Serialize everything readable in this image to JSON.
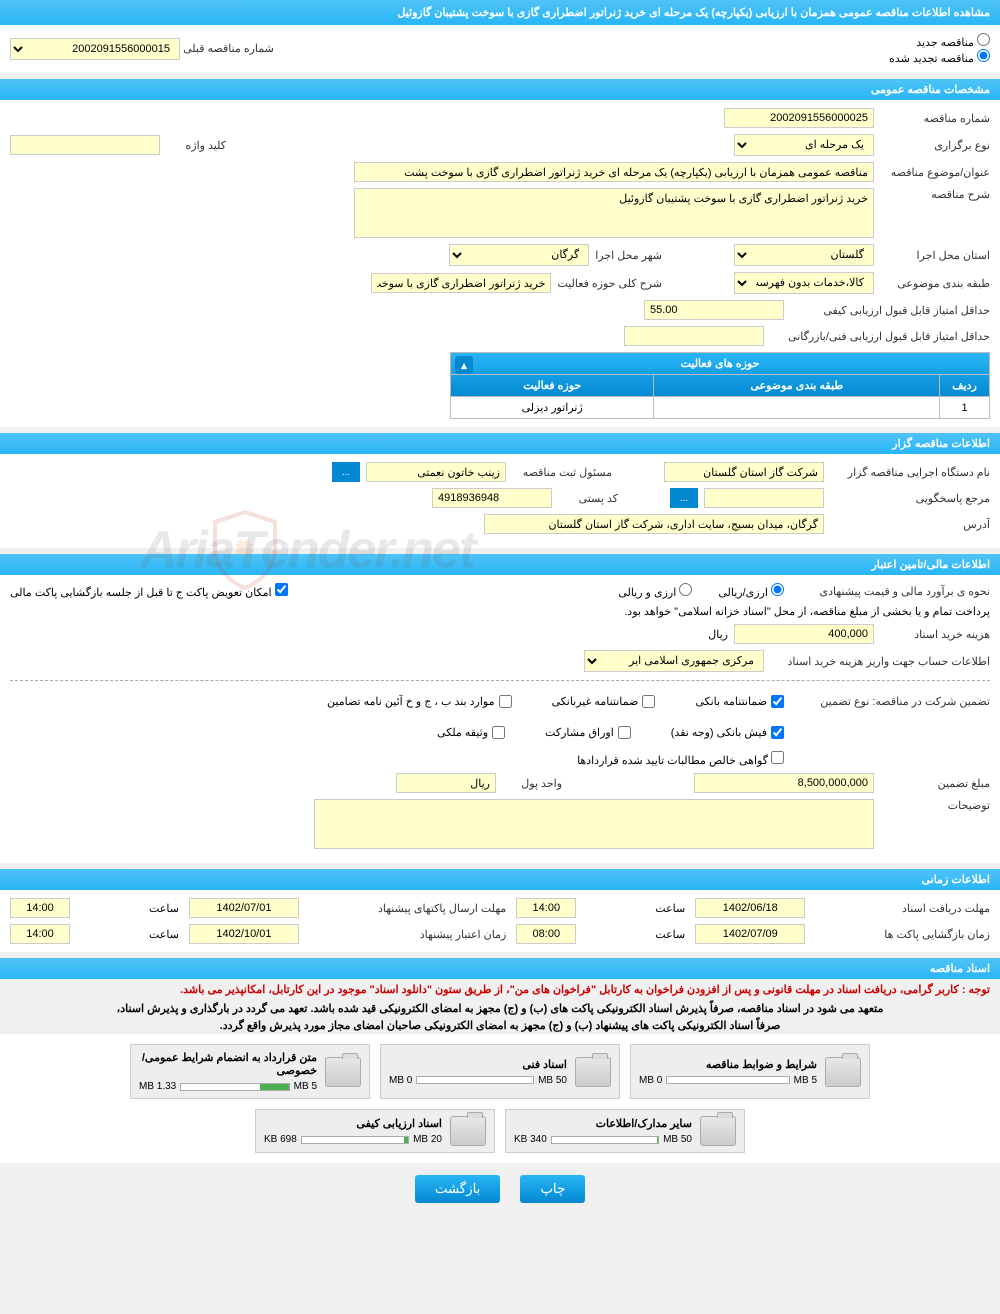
{
  "page_title": "مشاهده اطلاعات مناقصه عمومی همزمان با ارزیابی (یکپارچه) یک مرحله ای خرید ژنراتور اضطراری گازی با سوخت پشتیبان گازوئیل",
  "top_options": {
    "new": "مناقصه جدید",
    "renewed": "مناقصه تجدید شده",
    "prev_num_label": "شماره مناقصه قبلی",
    "prev_num": "2002091556000015"
  },
  "sections": {
    "general": "مشخصات مناقصه عمومی",
    "gzar": "اطلاعات مناقصه گزار",
    "finance": "اطلاعات مالی/تامین اعتبار",
    "time": "اطلاعات زمانی",
    "docs": "اسناد مناقصه"
  },
  "general": {
    "tender_no_label": "شماره مناقصه",
    "tender_no": "2002091556000025",
    "type_label": "نوع برگزاری",
    "type_value": "یک مرحله ای",
    "keyword_label": "کلید واژه",
    "keyword": "",
    "subject_label": "عنوان/موضوع مناقصه",
    "subject": "مناقصه عمومی همزمان با ارزیابی (یکپارچه) یک مرحله ای خرید ژنراتور اضطراری گازی با سوخت پشت",
    "desc_label": "شرح مناقصه",
    "desc": "خرید ژنراتور اضطراری گازی با سوخت پشتیبان گازوئیل",
    "province_label": "استان محل اجرا",
    "province": "گلستان",
    "city_label": "شهر محل اجرا",
    "city": "گرگان",
    "classify_label": "طبقه بندی موضوعی",
    "classify": "کالا،خدمات بدون فهرست ب",
    "activity_scope_label": "شرح کلی حوزه فعالیت",
    "activity_scope": "خرید ژنراتور اضطراری گازی با سوخت پشتیبان گازوئیل",
    "min_qual_label": "حداقل امتیاز قابل قبول ارزیابی کیفی",
    "min_qual": "55.00",
    "min_tech_label": "حداقل امتیاز قابل قبول ارزیابی فنی/بازرگانی",
    "min_tech": ""
  },
  "activity_table": {
    "title": "حوزه های فعالیت",
    "col_row": "ردیف",
    "col_class": "طبقه بندی موضوعی",
    "col_scope": "حوزه فعالیت",
    "row1_idx": "1",
    "row1_class": "",
    "row1_scope": "ژنراتور دیزلی"
  },
  "gzar": {
    "org_label": "نام دستگاه اجرایی مناقصه گزار",
    "org": "شرکت گاز استان گلستان",
    "registrar_label": "مسئول ثبت مناقصه",
    "registrar": "زینب خاتون نعمتی",
    "ref_label": "مرجع پاسخگویی",
    "ref": "",
    "postal_label": "کد پستی",
    "postal": "4918936948",
    "address_label": "آدرس",
    "address": "گرگان، میدان بسیج، سایت اداری، شرکت گاز استان گلستان"
  },
  "finance": {
    "estimate_label": "نحوه ی برآورد مالی و قیمت پیشنهادی",
    "opt_currency": "ارزی/ریالی",
    "opt_rial": "ارزی و ریالی",
    "swap_label": "امکان تعویض پاکت ج تا قبل از جلسه بازگشایی پاکت مالی",
    "payment_note": "پرداخت تمام و یا بخشی از مبلغ مناقصه، از محل \"اسناد خزانه اسلامی\" خواهد بود.",
    "doc_cost_label": "هزینه خرید اسناد",
    "doc_cost": "400,000",
    "rial": "ریال",
    "account_label": "اطلاعات حساب جهت واریز هزینه خرید اسناد",
    "account": "مرکزی جمهوری اسلامی ایر",
    "guarantee_type_label": "تضمین شرکت در مناقصه:   نوع تضمین",
    "g1": "ضمانتنامه بانکی",
    "g2": "ضمانتنامه غیربانکی",
    "g3": "موارد بند ب ، ج و خ آئین نامه تضامین",
    "g4": "فیش بانکی (وجه نقد)",
    "g5": "اوراق مشارکت",
    "g6": "وثیقه ملکی",
    "g7": "گواهی خالص مطالبات تایید شده قراردادها",
    "guarantee_amt_label": "مبلغ تضمین",
    "guarantee_amt": "8,500,000,000",
    "unit_label": "واحد پول",
    "unit": "ریال",
    "notes_label": "توضیحات",
    "notes": ""
  },
  "time": {
    "receive_deadline_label": "مهلت دریافت اسناد",
    "receive_deadline_date": "1402/06/18",
    "receive_deadline_hour_label": "ساعت",
    "receive_deadline_hour": "14:00",
    "send_deadline_label": "مهلت ارسال پاکتهای پیشنهاد",
    "send_deadline_date": "1402/07/01",
    "send_deadline_hour_label": "ساعت",
    "send_deadline_hour": "14:00",
    "open_label": "زمان بازگشایی پاکت ها",
    "open_date": "1402/07/09",
    "open_hour_label": "ساعت",
    "open_hour": "08:00",
    "validity_label": "زمان اعتبار پیشنهاد",
    "validity_date": "1402/10/01",
    "validity_hour_label": "ساعت",
    "validity_hour": "14:00"
  },
  "docs_notice": {
    "line1": "توجه : کاربر گرامی، دریافت اسناد در مهلت قانونی و پس از افزودن فراخوان به کارتابل \"فراخوان های من\"، از طریق ستون \"دانلود اسناد\" موجود در این کارتابل، امکانپذیر می باشد.",
    "line2": "متعهد می شود در اسناد مناقصه، صرفاً پذیرش اسناد الکترونیکی پاکت های (ب) و (ج) مجهز به امضای الکترونیکی قید شده باشد. تعهد می گردد در بارگذاری و پذیرش اسناد،",
    "line3": "صرفاً اسناد الکترونیکی پاکت های پیشنهاد (ب) و (ج) مجهز به امضای الکترونیکی صاحبان امضای مجاز مورد پذیرش واقع گردد."
  },
  "doc_cards": [
    {
      "title": "شرایط و ضوابط مناقصه",
      "used": "0 MB",
      "cap": "5 MB",
      "pct": 0
    },
    {
      "title": "اسناد فنی",
      "used": "0 MB",
      "cap": "50 MB",
      "pct": 0
    },
    {
      "title": "متن قرارداد به انضمام شرایط عمومی/خصوصی",
      "used": "1.33 MB",
      "cap": "5 MB",
      "pct": 27
    },
    {
      "title": "سایر مدارک/اطلاعات",
      "used": "340 KB",
      "cap": "50 MB",
      "pct": 1
    },
    {
      "title": "اسناد ارزیابی کیفی",
      "used": "698 KB",
      "cap": "20 MB",
      "pct": 4
    }
  ],
  "buttons": {
    "print": "چاپ",
    "back": "بازگشت"
  },
  "watermark": "AriaTender.net"
}
